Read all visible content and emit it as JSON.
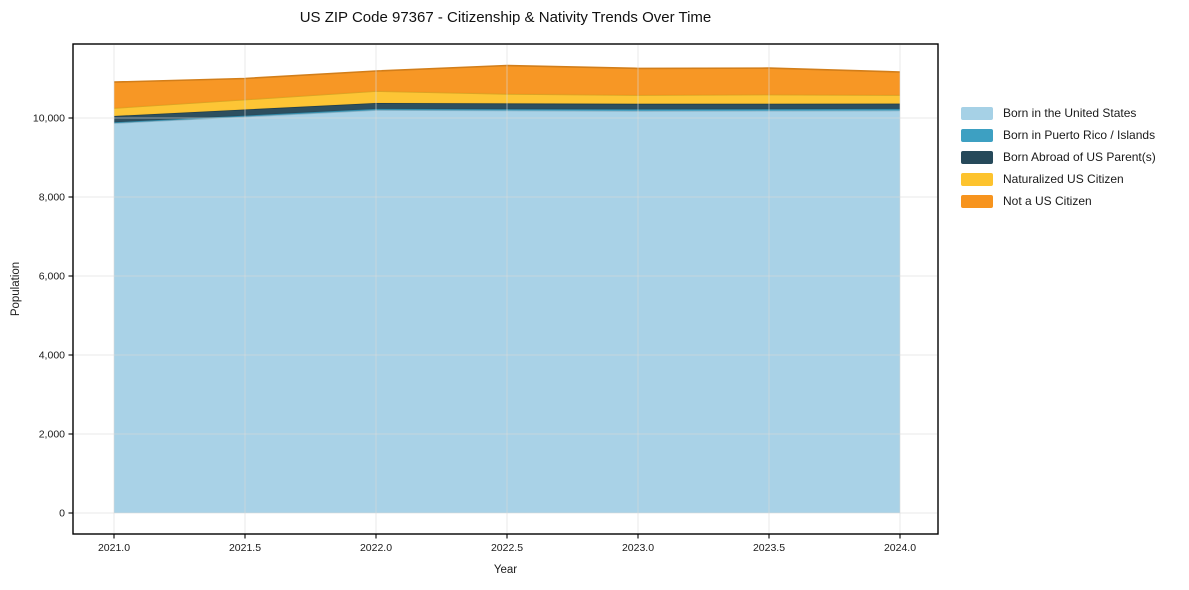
{
  "chart_data": {
    "type": "area",
    "stacked": true,
    "title": "US ZIP Code 97367 - Citizenship & Nativity Trends Over Time",
    "xlabel": "Year",
    "ylabel": "Population",
    "x": [
      2021.0,
      2021.5,
      2022.0,
      2022.5,
      2023.0,
      2023.5,
      2024.0
    ],
    "series": [
      {
        "name": "Born in the United States",
        "color": "#a6d1e6",
        "values": [
          9870,
          10035,
          10200,
          10190,
          10180,
          10185,
          10190
        ]
      },
      {
        "name": "Born in Puerto Rico / Islands",
        "color": "#3da0c2",
        "values": [
          20,
          25,
          30,
          35,
          40,
          40,
          40
        ]
      },
      {
        "name": "Born Abroad of US Parent(s)",
        "color": "#26495a",
        "values": [
          160,
          155,
          150,
          145,
          140,
          138,
          135
        ]
      },
      {
        "name": "Naturalized US Citizen",
        "color": "#fdc32e",
        "values": [
          200,
          250,
          300,
          240,
          220,
          230,
          215
        ]
      },
      {
        "name": "Not a US Citizen",
        "color": "#f7941e",
        "values": [
          660,
          535,
          510,
          720,
          675,
          670,
          585
        ]
      }
    ],
    "x_ticks": {
      "values": [
        2021.0,
        2021.5,
        2022.0,
        2022.5,
        2023.0,
        2023.5,
        2024.0
      ],
      "labels": [
        "2021.0",
        "2021.5",
        "2022.0",
        "2022.5",
        "2023.0",
        "2023.5",
        "2024.0"
      ]
    },
    "y_ticks": {
      "values": [
        0,
        2000,
        4000,
        6000,
        8000,
        10000
      ],
      "labels": [
        "0",
        "2,000",
        "4,000",
        "6,000",
        "8,000",
        "10,000"
      ]
    },
    "xlim": [
      2020.84,
      2024.15
    ],
    "ylim": [
      -560,
      11880
    ],
    "grid": true,
    "legend_position": "right-outside"
  }
}
